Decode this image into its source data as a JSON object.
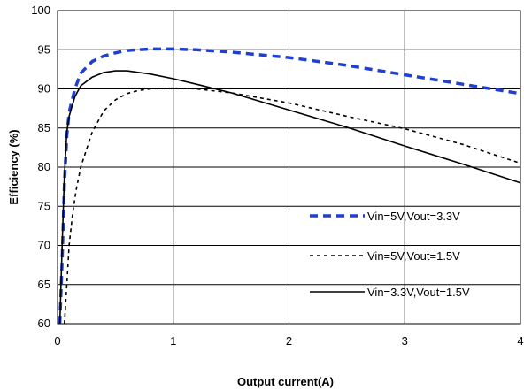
{
  "chart_data": {
    "type": "line",
    "title": "",
    "xlabel": "Output current(A)",
    "ylabel": "Efficiency (%)",
    "xlim": [
      0,
      4
    ],
    "ylim": [
      60,
      100
    ],
    "xticks": [
      0,
      1,
      2,
      3,
      4
    ],
    "yticks": [
      60,
      65,
      70,
      75,
      80,
      85,
      90,
      95,
      100
    ],
    "grid": true,
    "legend_position": "bottom-right",
    "series": [
      {
        "name": "Vin=5V,Vout=3.3V",
        "color": "#1f3fcf",
        "dash": "dashed-thick",
        "points": [
          [
            0.02,
            60
          ],
          [
            0.04,
            68
          ],
          [
            0.06,
            78
          ],
          [
            0.08,
            84
          ],
          [
            0.1,
            87
          ],
          [
            0.15,
            90
          ],
          [
            0.2,
            92
          ],
          [
            0.3,
            93.5
          ],
          [
            0.4,
            94.2
          ],
          [
            0.5,
            94.6
          ],
          [
            0.6,
            94.9
          ],
          [
            0.8,
            95.1
          ],
          [
            1.0,
            95.1
          ],
          [
            1.2,
            95.0
          ],
          [
            1.5,
            94.7
          ],
          [
            2.0,
            94.0
          ],
          [
            2.5,
            93.0
          ],
          [
            3.0,
            91.8
          ],
          [
            3.5,
            90.6
          ],
          [
            4.0,
            89.4
          ]
        ]
      },
      {
        "name": "Vin=5V,Vout=1.5V",
        "color": "#000000",
        "dash": "dashed",
        "points": [
          [
            0.06,
            60
          ],
          [
            0.08,
            65
          ],
          [
            0.1,
            70
          ],
          [
            0.13,
            74
          ],
          [
            0.16,
            77
          ],
          [
            0.2,
            80
          ],
          [
            0.3,
            84.5
          ],
          [
            0.4,
            87.2
          ],
          [
            0.5,
            88.6
          ],
          [
            0.6,
            89.4
          ],
          [
            0.7,
            89.8
          ],
          [
            0.8,
            90.0
          ],
          [
            1.0,
            90.1
          ],
          [
            1.2,
            90.0
          ],
          [
            1.5,
            89.5
          ],
          [
            2.0,
            88.2
          ],
          [
            2.5,
            86.5
          ],
          [
            3.0,
            84.9
          ],
          [
            3.5,
            82.9
          ],
          [
            4.0,
            80.5
          ]
        ]
      },
      {
        "name": "Vin=3.3V,Vout=1.5V",
        "color": "#000000",
        "dash": "solid",
        "points": [
          [
            0.02,
            60
          ],
          [
            0.04,
            70
          ],
          [
            0.06,
            79
          ],
          [
            0.08,
            84.5
          ],
          [
            0.1,
            86.5
          ],
          [
            0.15,
            89
          ],
          [
            0.2,
            90.4
          ],
          [
            0.3,
            91.5
          ],
          [
            0.4,
            92.1
          ],
          [
            0.5,
            92.3
          ],
          [
            0.6,
            92.3
          ],
          [
            0.8,
            91.9
          ],
          [
            1.0,
            91.3
          ],
          [
            1.2,
            90.6
          ],
          [
            1.5,
            89.5
          ],
          [
            2.0,
            87.3
          ],
          [
            2.5,
            85.1
          ],
          [
            3.0,
            82.7
          ],
          [
            3.5,
            80.4
          ],
          [
            4.0,
            78.0
          ]
        ]
      }
    ]
  }
}
